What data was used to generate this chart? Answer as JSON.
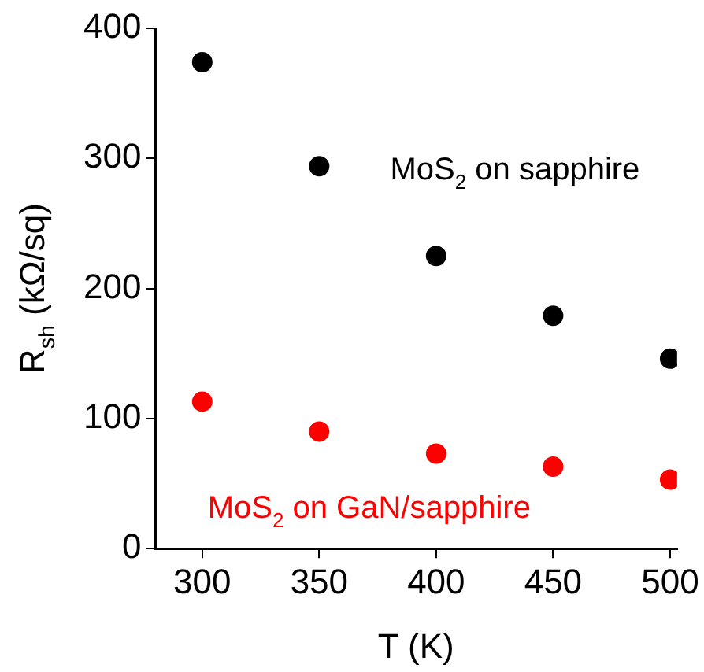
{
  "chart_data": {
    "type": "scatter",
    "xlabel": "T (K)",
    "ylabel": "R$_{sh}$ (kΩ/sq)",
    "x": [
      300,
      350,
      400,
      450,
      500
    ],
    "series": [
      {
        "name": "MoS$_{2}$ on sapphire",
        "color": "#000000",
        "values": [
          374,
          294,
          225,
          179,
          146
        ]
      },
      {
        "name": "MoS$_{2}$ on GaN/sapphire",
        "color": "#ff0000",
        "values": [
          113,
          90,
          73,
          63,
          53
        ]
      }
    ],
    "xlim": [
      280,
      503
    ],
    "ylim": [
      0,
      400
    ],
    "xticks": [
      300,
      350,
      400,
      450,
      500
    ],
    "yticks": [
      0,
      100,
      200,
      300,
      400
    ],
    "marker": "circle",
    "grid": false,
    "legend": false
  }
}
